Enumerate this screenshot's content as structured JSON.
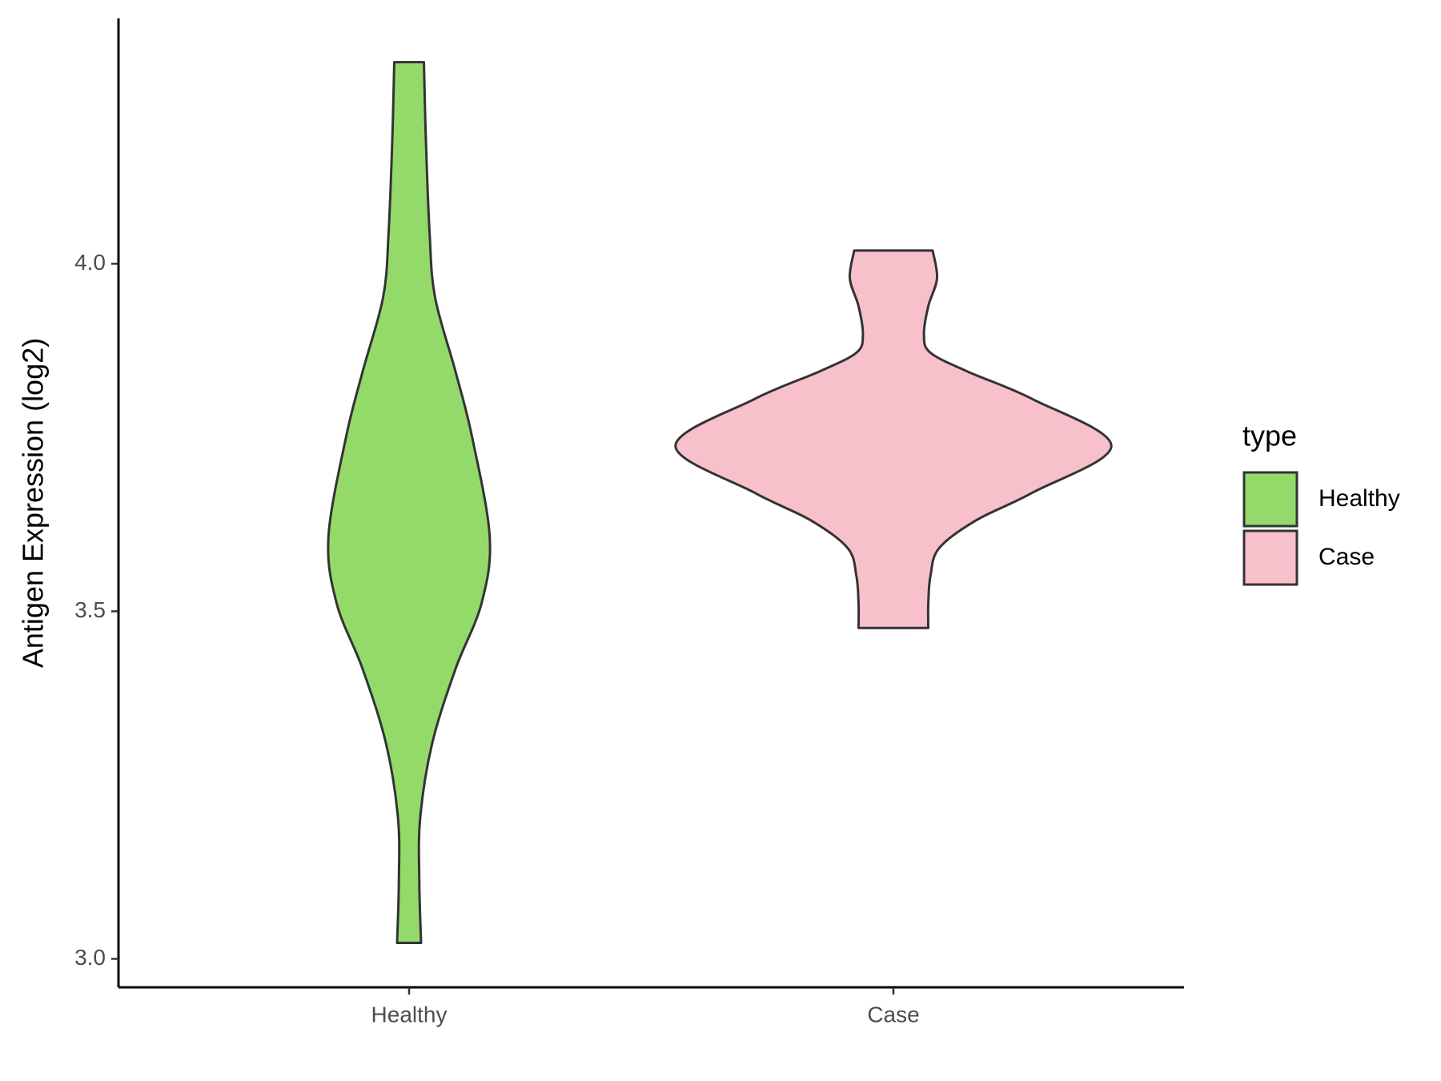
{
  "chart_data": {
    "type": "violin",
    "y_label": "Antigen Expression (log2)",
    "categories": [
      "Healthy",
      "Case"
    ],
    "legend_title": "type",
    "ylim": [
      2.959,
      4.353
    ],
    "yticks": [
      {
        "value": 3,
        "label": "3.0"
      },
      {
        "value": 3.5,
        "label": "3.5"
      },
      {
        "value": 4,
        "label": "4.0"
      }
    ],
    "series": [
      {
        "name": "Healthy",
        "color": "#93DA6A",
        "y": [
          4.29,
          4.179,
          4.045,
          3.952,
          3.845,
          3.751,
          3.607,
          3.511,
          3.417,
          3.31,
          3.203,
          3.11,
          3.023
        ],
        "density": [
          0.068,
          0.077,
          0.094,
          0.119,
          0.213,
          0.289,
          0.37,
          0.332,
          0.213,
          0.106,
          0.051,
          0.047,
          0.055
        ]
      },
      {
        "name": "Case",
        "color": "#F8C0CB",
        "y": [
          4.019,
          3.979,
          3.939,
          3.898,
          3.872,
          3.845,
          3.805,
          3.738,
          3.671,
          3.631,
          3.591,
          3.551,
          3.511,
          3.476
        ],
        "density": [
          0.18,
          0.2,
          0.16,
          0.14,
          0.17,
          0.34,
          0.64,
          1.0,
          0.64,
          0.38,
          0.21,
          0.17,
          0.16,
          0.16
        ]
      }
    ]
  }
}
